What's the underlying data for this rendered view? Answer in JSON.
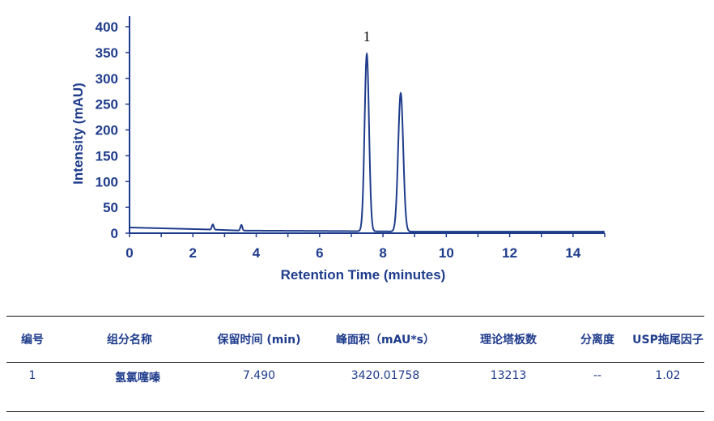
{
  "chart_data": {
    "type": "line",
    "title": "",
    "xlabel": "Retention Time (minutes)",
    "ylabel": "Intensity (mAU)",
    "xlim": [
      0,
      15
    ],
    "ylim": [
      0,
      400
    ],
    "xticks": [
      0,
      2,
      4,
      6,
      8,
      10,
      12,
      14
    ],
    "yticks": [
      0,
      50,
      100,
      150,
      200,
      250,
      300,
      350,
      400
    ],
    "grid": false,
    "color": "#1f3c8c",
    "baseline": {
      "x": [
        0,
        2.6,
        3.5,
        7,
        9,
        15
      ],
      "y": [
        11,
        7,
        5,
        4,
        3,
        3
      ]
    },
    "peaks": [
      {
        "rt": 2.63,
        "height": 10,
        "width": 0.03
      },
      {
        "rt": 3.53,
        "height": 11,
        "width": 0.03
      },
      {
        "rt": 7.49,
        "height": 343,
        "width": 0.07,
        "label": "1"
      },
      {
        "rt": 8.56,
        "height": 268,
        "width": 0.08
      }
    ]
  },
  "table": {
    "headers": [
      "编号",
      "组分名称",
      "保留时间 (min)",
      "峰面积（mAU*s）",
      "理论塔板数",
      "分离度",
      "USP拖尾因子"
    ],
    "rows": [
      [
        "1",
        "氢氯噻嗪",
        "7.490",
        "3420.01758",
        "13213",
        "--",
        "1.02"
      ]
    ]
  }
}
